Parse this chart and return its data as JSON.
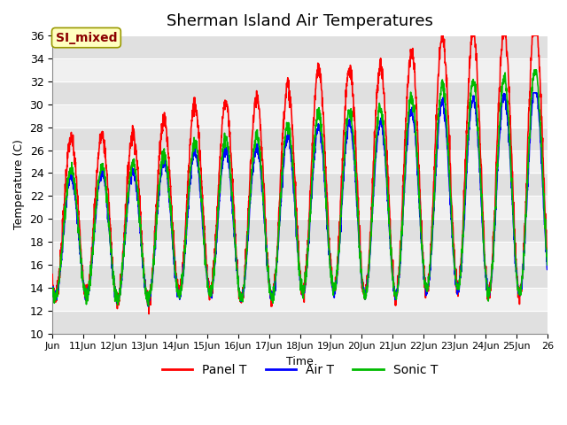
{
  "title": "Sherman Island Air Temperatures",
  "xlabel": "Time",
  "ylabel": "Temperature (C)",
  "ylim": [
    10,
    37
  ],
  "yticks": [
    10,
    12,
    14,
    16,
    18,
    20,
    22,
    24,
    26,
    28,
    30,
    32,
    34,
    36
  ],
  "xlim_days": [
    10,
    26
  ],
  "xtick_days": [
    10,
    11,
    12,
    13,
    14,
    15,
    16,
    17,
    18,
    19,
    20,
    21,
    22,
    23,
    24,
    25,
    26
  ],
  "xtick_labels": [
    "Jun",
    "11Jun",
    "12Jun",
    "13Jun",
    "14Jun",
    "15Jun",
    "16Jun",
    "17Jun",
    "18Jun",
    "19Jun",
    "20Jun",
    "21Jun",
    "22Jun",
    "23Jun",
    "24Jun",
    "25Jun",
    "26"
  ],
  "annotation_text": "SI_mixed",
  "annotation_color": "#8B0000",
  "annotation_bg": "#FFFFC0",
  "panel_color": "#FF0000",
  "air_color": "#0000FF",
  "sonic_color": "#00BB00",
  "legend_labels": [
    "Panel T",
    "Air T",
    "Sonic T"
  ],
  "plot_bg": "#FFFFFF",
  "stripe_dark": "#E0E0E0",
  "stripe_light": "#F0F0F0",
  "linewidth": 1.2,
  "title_fontsize": 13,
  "axis_fontsize": 9
}
